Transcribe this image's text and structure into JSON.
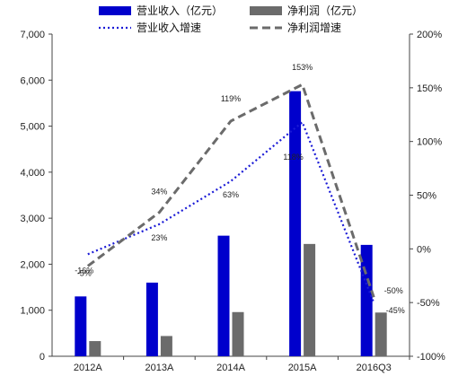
{
  "chart_data": {
    "type": "bar+line",
    "categories": [
      "2012A",
      "2013A",
      "2014A",
      "2015A",
      "2016Q3"
    ],
    "bar_series": [
      {
        "name": "营业收入（亿元）",
        "color": "#0000cc",
        "values": [
          1300,
          1600,
          2620,
          5760,
          2420
        ]
      },
      {
        "name": "净利润（亿元）",
        "color": "#6b6b6b",
        "values": [
          330,
          440,
          960,
          2440,
          950
        ]
      }
    ],
    "line_series": [
      {
        "name": "营业收入增速",
        "color": "#1a1ad6",
        "style": "dotted",
        "values": [
          -5,
          23,
          63,
          118,
          -50
        ]
      },
      {
        "name": "净利润增速",
        "color": "#6b6b6b",
        "style": "dashed",
        "values": [
          -16,
          34,
          119,
          153,
          -45
        ]
      }
    ],
    "y_left": {
      "min": 0,
      "max": 7000,
      "step": 1000,
      "tick_labels": [
        "0",
        "1,000",
        "2,000",
        "3,000",
        "4,000",
        "5,000",
        "6,000",
        "7,000"
      ]
    },
    "y_right": {
      "min": -100,
      "max": 200,
      "step": 50,
      "tick_labels": [
        "-100%",
        "-50%",
        "0%",
        "50%",
        "100%",
        "150%",
        "200%"
      ]
    },
    "data_labels": {
      "营业收入增速": [
        "-5%",
        "23%",
        "63%",
        "118%",
        "-50%"
      ],
      "净利润增速": [
        "-16%",
        "34%",
        "119%",
        "153%",
        "-45%"
      ]
    },
    "legend_position": "top"
  }
}
